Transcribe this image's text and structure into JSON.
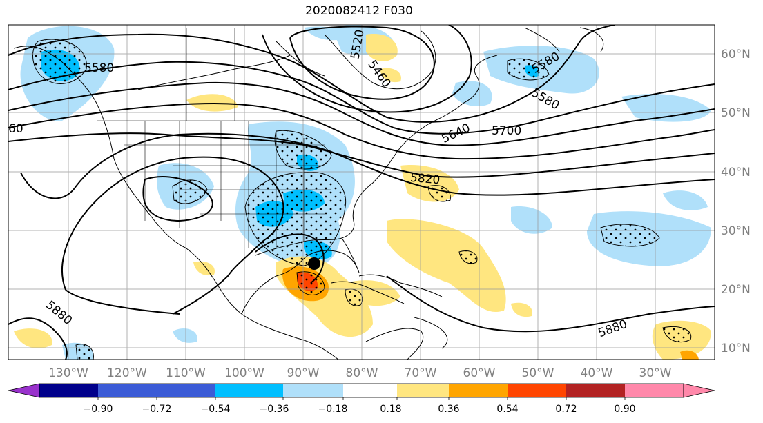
{
  "title": "2020082412 F030",
  "longitude_labels": [
    "130°W",
    "120°W",
    "110°W",
    "100°W",
    "90°W",
    "80°W",
    "70°W",
    "60°W",
    "50°W",
    "40°W",
    "30°W"
  ],
  "latitude_labels": [
    "60°N",
    "50°N",
    "40°N",
    "30°N",
    "20°N",
    "10°N"
  ],
  "contour_labels": [
    "5520",
    "5460",
    "5580",
    "5580",
    "5580",
    "5640",
    "5700",
    "5820",
    "5880",
    "5880",
    "60"
  ],
  "colorbar": {
    "tick_labels": [
      "−0.90",
      "−0.72",
      "−0.54",
      "−0.36",
      "−0.18",
      "0.18",
      "0.36",
      "0.54",
      "0.72",
      "0.90"
    ],
    "colors": [
      "#9932cc",
      "#00008b",
      "#3b5bd6",
      "#00bfff",
      "#b0e0fa",
      "#ffffff",
      "#ffe680",
      "#ffa500",
      "#ff4500",
      "#b22222",
      "#ff88aa"
    ]
  },
  "palette": {
    "light_blue": "#b0e0fa",
    "mid_blue": "#00bfff",
    "yellow": "#ffe680",
    "orange": "#ffa500",
    "red": "#ff4500",
    "storm_marker": "#000000"
  }
}
